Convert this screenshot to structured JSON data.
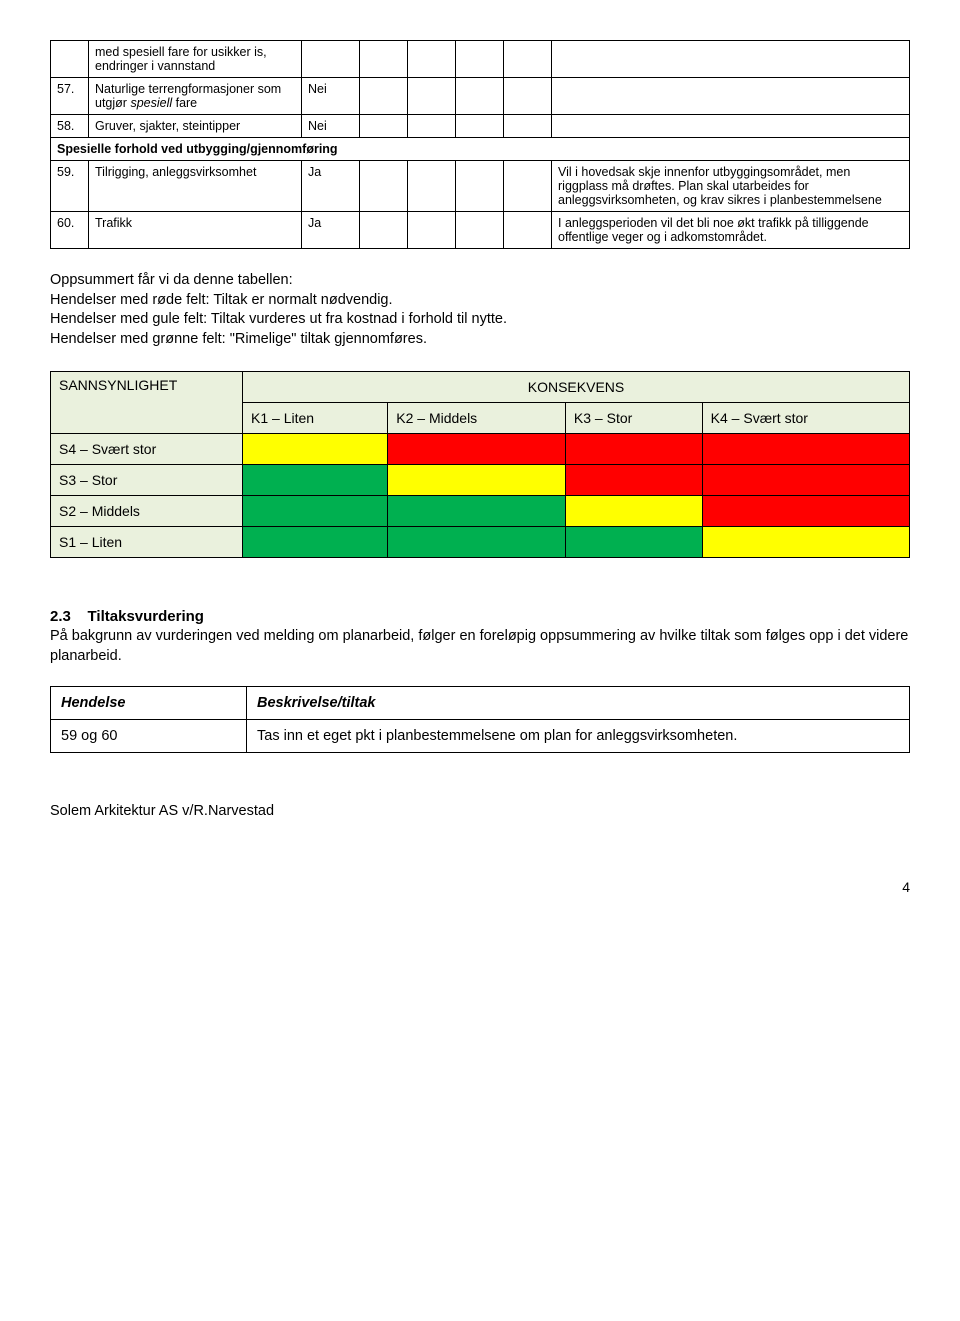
{
  "risk_rows": [
    {
      "num": "",
      "label_html": "med spesiell fare for usikker is, endringer i vannstand",
      "val": "",
      "comment": "",
      "section": false
    },
    {
      "num": "57.",
      "label_html": "Naturlige terrengformasjoner som utgjør <i>spesiell</i> fare",
      "val": "Nei",
      "comment": "",
      "section": false
    },
    {
      "num": "58.",
      "label_html": "Gruver, sjakter, steintipper",
      "val": "Nei",
      "comment": "",
      "section": false
    },
    {
      "section": true,
      "label": "Spesielle forhold ved utbygging/gjennomføring"
    },
    {
      "num": "59.",
      "label_html": "Tilrigging, anleggsvirksomhet",
      "val": "Ja",
      "comment": "Vil i hovedsak skje innenfor utbyggingsområdet, men riggplass må drøftes. Plan skal utarbeides for anleggsvirksomheten, og krav sikres i planbestemmelsene",
      "section": false
    },
    {
      "num": "60.",
      "label_html": "Trafikk",
      "val": "Ja",
      "comment": "I anleggsperioden vil det bli noe økt trafikk på tilliggende offentlige veger og i adkomstområdet.",
      "section": false
    }
  ],
  "summary": {
    "title": "Oppsummert får vi da denne tabellen:",
    "line1": "Hendelser med røde felt: Tiltak er normalt nødvendig.",
    "line2": "Hendelser med gule felt: Tiltak vurderes ut fra kostnad i forhold til nytte.",
    "line3": "Hendelser med grønne felt: \"Rimelige\" tiltak gjennomføres."
  },
  "matrix": {
    "prob_header": "SANNSYNLIGHET",
    "cons_header": "KONSEKVENS",
    "columns": [
      "K1 – Liten",
      "K2 – Middels",
      "K3 – Stor",
      "K4 – Svært stor"
    ],
    "rows": [
      {
        "label": "S4 – Svært stor",
        "cells": [
          "yellow",
          "red",
          "red",
          "red"
        ]
      },
      {
        "label": "S3 – Stor",
        "cells": [
          "green",
          "yellow",
          "red",
          "red"
        ]
      },
      {
        "label": "S2 – Middels",
        "cells": [
          "green",
          "green",
          "yellow",
          "red"
        ]
      },
      {
        "label": "S1 – Liten",
        "cells": [
          "green",
          "green",
          "green",
          "yellow"
        ]
      }
    ],
    "colors": {
      "yellow": "#ffff00",
      "red": "#ff0000",
      "green": "#00b050",
      "header_bg": "#eaf1dd"
    }
  },
  "section": {
    "num": "2.3",
    "title": "Tiltaksvurdering",
    "body": "På bakgrunn av vurderingen ved melding om planarbeid, følger en foreløpig oppsummering av hvilke tiltak som følges opp i det videre planarbeid."
  },
  "action_table": {
    "headers": [
      "Hendelse",
      "Beskrivelse/tiltak"
    ],
    "rows": [
      {
        "left": "59 og 60",
        "right": "Tas inn et eget pkt i planbestemmelsene om plan for anleggsvirksomheten."
      }
    ]
  },
  "signature": "Solem Arkitektur AS v/R.Narvestad",
  "page_number": "4"
}
